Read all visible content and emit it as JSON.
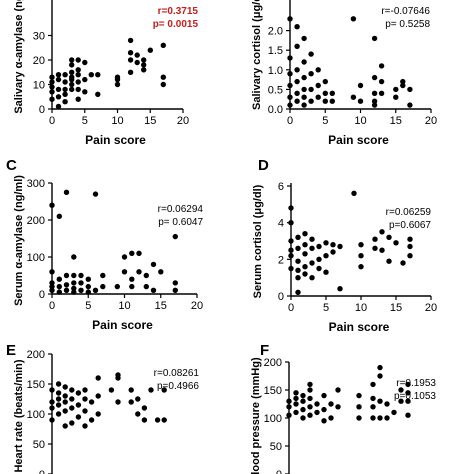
{
  "chart_data": [
    {
      "id": "A",
      "panel_label": "",
      "type": "scatter",
      "xlabel": "Pain score",
      "ylabel": "Salivary α-amylase (ng/",
      "xlim": [
        0,
        20
      ],
      "ylim": [
        0,
        40
      ],
      "xticks": [
        "0",
        "5",
        "10",
        "15",
        "20"
      ],
      "yticks": [
        "0",
        "10",
        "20",
        "30"
      ],
      "r": "r=0.3715",
      "p": "p= 0.0015",
      "significant": true,
      "points": [
        [
          0,
          4
        ],
        [
          0,
          7
        ],
        [
          0,
          9
        ],
        [
          0,
          11
        ],
        [
          0,
          13
        ],
        [
          1,
          1
        ],
        [
          1,
          5
        ],
        [
          1,
          8
        ],
        [
          1,
          12
        ],
        [
          1,
          14
        ],
        [
          2,
          3
        ],
        [
          2,
          6
        ],
        [
          2,
          8
        ],
        [
          2,
          11
        ],
        [
          2,
          14
        ],
        [
          3,
          8
        ],
        [
          3,
          10
        ],
        [
          3,
          12
        ],
        [
          3,
          13
        ],
        [
          3,
          15
        ],
        [
          3,
          18
        ],
        [
          3,
          20
        ],
        [
          4,
          4
        ],
        [
          4,
          8
        ],
        [
          4,
          11
        ],
        [
          4,
          14
        ],
        [
          4,
          16
        ],
        [
          4,
          20
        ],
        [
          5,
          7
        ],
        [
          5,
          12
        ],
        [
          5,
          19
        ],
        [
          6,
          14
        ],
        [
          7,
          6
        ],
        [
          7,
          14
        ],
        [
          10,
          10
        ],
        [
          10,
          12
        ],
        [
          10,
          13
        ],
        [
          12,
          15
        ],
        [
          12,
          20
        ],
        [
          12,
          23
        ],
        [
          12,
          28
        ],
        [
          13,
          19
        ],
        [
          13,
          22
        ],
        [
          14,
          16
        ],
        [
          14,
          18
        ],
        [
          14,
          20
        ],
        [
          15,
          24
        ],
        [
          17,
          10
        ],
        [
          17,
          13
        ],
        [
          17,
          26
        ]
      ]
    },
    {
      "id": "B",
      "panel_label": "",
      "type": "scatter",
      "xlabel": "Pain score",
      "ylabel": "Salivary cortisol (μg/d",
      "xlim": [
        0,
        20
      ],
      "ylim": [
        0,
        2.5
      ],
      "xticks": [
        "0",
        "5",
        "10",
        "15",
        "20"
      ],
      "yticks": [
        "0.0",
        "0.5",
        "1.0",
        "1.5",
        "2.0"
      ],
      "r": "r=-0.07646",
      "p": "p= 0.5258",
      "significant": false,
      "points": [
        [
          0,
          0.1
        ],
        [
          0,
          0.3
        ],
        [
          0,
          0.6
        ],
        [
          0,
          0.9
        ],
        [
          0,
          1.3
        ],
        [
          0,
          2.3
        ],
        [
          1,
          0.2
        ],
        [
          1,
          0.4
        ],
        [
          1,
          0.7
        ],
        [
          1,
          1.0
        ],
        [
          1,
          1.6
        ],
        [
          1,
          2.1
        ],
        [
          2,
          0.1
        ],
        [
          2,
          0.3
        ],
        [
          2,
          0.5
        ],
        [
          2,
          0.8
        ],
        [
          2,
          1.2
        ],
        [
          2,
          1.8
        ],
        [
          3,
          0.2
        ],
        [
          3,
          0.5
        ],
        [
          3,
          0.9
        ],
        [
          3,
          1.4
        ],
        [
          4,
          0.3
        ],
        [
          4,
          0.6
        ],
        [
          4,
          1.0
        ],
        [
          5,
          0.2
        ],
        [
          5,
          0.4
        ],
        [
          5,
          0.7
        ],
        [
          6,
          0.2
        ],
        [
          6,
          0.4
        ],
        [
          9,
          0.3
        ],
        [
          9,
          2.3
        ],
        [
          10,
          0.2
        ],
        [
          10,
          0.6
        ],
        [
          12,
          0.1
        ],
        [
          12,
          0.2
        ],
        [
          12,
          0.4
        ],
        [
          12,
          0.8
        ],
        [
          12,
          1.8
        ],
        [
          13,
          0.4
        ],
        [
          13,
          0.7
        ],
        [
          13,
          1.1
        ],
        [
          15,
          0.3
        ],
        [
          15,
          0.5
        ],
        [
          16,
          0.6
        ],
        [
          16,
          0.7
        ],
        [
          17,
          0.1
        ],
        [
          17,
          0.5
        ]
      ]
    },
    {
      "id": "C",
      "panel_label": "C",
      "type": "scatter",
      "xlabel": "Pain score",
      "ylabel": "Serum α-amylase (ng/ml)",
      "xlim": [
        0,
        20
      ],
      "ylim": [
        0,
        300
      ],
      "xticks": [
        "0",
        "5",
        "10",
        "15",
        "20"
      ],
      "yticks": [
        "0",
        "100",
        "200",
        "300"
      ],
      "r": "r=0.06294",
      "p": "p= 0.6047",
      "significant": false,
      "points": [
        [
          0,
          10
        ],
        [
          0,
          20
        ],
        [
          0,
          30
        ],
        [
          0,
          60
        ],
        [
          0,
          240
        ],
        [
          1,
          5
        ],
        [
          1,
          20
        ],
        [
          1,
          40
        ],
        [
          1,
          210
        ],
        [
          2,
          10
        ],
        [
          2,
          25
        ],
        [
          2,
          50
        ],
        [
          2,
          275
        ],
        [
          3,
          5
        ],
        [
          3,
          15
        ],
        [
          3,
          30
        ],
        [
          3,
          50
        ],
        [
          3,
          100
        ],
        [
          4,
          10
        ],
        [
          4,
          30
        ],
        [
          4,
          50
        ],
        [
          5,
          5
        ],
        [
          5,
          20
        ],
        [
          5,
          40
        ],
        [
          6,
          10
        ],
        [
          6,
          270
        ],
        [
          7,
          20
        ],
        [
          7,
          50
        ],
        [
          9,
          20
        ],
        [
          10,
          60
        ],
        [
          10,
          100
        ],
        [
          11,
          20
        ],
        [
          11,
          40
        ],
        [
          11,
          110
        ],
        [
          12,
          110
        ],
        [
          12,
          60
        ],
        [
          13,
          20
        ],
        [
          13,
          50
        ],
        [
          14,
          10
        ],
        [
          14,
          80
        ],
        [
          15,
          60
        ],
        [
          17,
          10
        ],
        [
          17,
          30
        ],
        [
          17,
          155
        ]
      ]
    },
    {
      "id": "D",
      "panel_label": "D",
      "type": "scatter",
      "xlabel": "Pain score",
      "ylabel": "Serum cortisol (μg/dl)",
      "xlim": [
        0,
        20
      ],
      "ylim": [
        0,
        6
      ],
      "xticks": [
        "0",
        "5",
        "10",
        "15",
        "20"
      ],
      "yticks": [
        "0",
        "2",
        "4",
        "6"
      ],
      "r": "r=0.06259",
      "p": "p=0.6067",
      "significant": false,
      "points": [
        [
          0,
          1.5
        ],
        [
          0,
          2.2
        ],
        [
          0,
          2.5
        ],
        [
          0,
          3.0
        ],
        [
          0,
          4.0
        ],
        [
          0,
          4.8
        ],
        [
          1,
          0.2
        ],
        [
          1,
          1.0
        ],
        [
          1,
          1.4
        ],
        [
          1,
          1.9
        ],
        [
          1,
          2.6
        ],
        [
          1,
          3.2
        ],
        [
          2,
          1.2
        ],
        [
          2,
          1.6
        ],
        [
          2,
          2.3
        ],
        [
          2,
          2.8
        ],
        [
          2,
          3.4
        ],
        [
          3,
          1.0
        ],
        [
          3,
          1.8
        ],
        [
          3,
          2.6
        ],
        [
          3,
          3.1
        ],
        [
          4,
          1.5
        ],
        [
          4,
          2.0
        ],
        [
          4,
          2.7
        ],
        [
          5,
          1.3
        ],
        [
          5,
          2.2
        ],
        [
          5,
          2.9
        ],
        [
          6,
          2.4
        ],
        [
          6,
          2.8
        ],
        [
          7,
          0.4
        ],
        [
          7,
          2.7
        ],
        [
          9,
          5.6
        ],
        [
          10,
          1.6
        ],
        [
          10,
          2.2
        ],
        [
          10,
          2.8
        ],
        [
          12,
          2.6
        ],
        [
          12,
          3.1
        ],
        [
          13,
          2.5
        ],
        [
          13,
          3.5
        ],
        [
          14,
          1.9
        ],
        [
          14,
          3.2
        ],
        [
          15,
          2.9
        ],
        [
          16,
          1.8
        ],
        [
          17,
          2.2
        ],
        [
          17,
          2.7
        ],
        [
          17,
          3.1
        ]
      ]
    },
    {
      "id": "E",
      "panel_label": "E",
      "type": "scatter",
      "xlabel": "",
      "ylabel": "Heart rate (beats/min)",
      "xlim": [
        0,
        20
      ],
      "ylim": [
        0,
        200
      ],
      "xticks": [],
      "yticks": [
        "0",
        "50",
        "100",
        "150",
        "200"
      ],
      "r": "r=0.08261",
      "p": "p=0.4966",
      "significant": false,
      "points": [
        [
          0,
          90
        ],
        [
          0,
          110
        ],
        [
          0,
          120
        ],
        [
          0,
          140
        ],
        [
          1,
          100
        ],
        [
          1,
          115
        ],
        [
          1,
          125
        ],
        [
          1,
          135
        ],
        [
          1,
          150
        ],
        [
          2,
          80
        ],
        [
          2,
          105
        ],
        [
          2,
          120
        ],
        [
          2,
          130
        ],
        [
          2,
          145
        ],
        [
          3,
          85
        ],
        [
          3,
          110
        ],
        [
          3,
          125
        ],
        [
          3,
          140
        ],
        [
          4,
          95
        ],
        [
          4,
          115
        ],
        [
          4,
          135
        ],
        [
          5,
          80
        ],
        [
          5,
          105
        ],
        [
          5,
          125
        ],
        [
          5,
          140
        ],
        [
          6,
          90
        ],
        [
          6,
          120
        ],
        [
          7,
          100
        ],
        [
          7,
          130
        ],
        [
          7,
          160
        ],
        [
          9,
          140
        ],
        [
          10,
          120
        ],
        [
          10,
          160
        ],
        [
          10,
          165
        ],
        [
          12,
          120
        ],
        [
          12,
          140
        ],
        [
          13,
          100
        ],
        [
          13,
          125
        ],
        [
          14,
          90
        ],
        [
          14,
          110
        ],
        [
          15,
          140
        ],
        [
          16,
          90
        ],
        [
          17,
          90
        ],
        [
          17,
          140
        ]
      ]
    },
    {
      "id": "F",
      "panel_label": "F",
      "type": "scatter",
      "xlabel": "",
      "ylabel": "Blood pressure (mmHg)",
      "xlim": [
        0,
        20
      ],
      "ylim": [
        0,
        200
      ],
      "xticks": [],
      "yticks": [
        "0",
        "50",
        "100",
        "150",
        "200"
      ],
      "r": "r=0.1953",
      "p": "p=0.1053",
      "significant": false,
      "points": [
        [
          0,
          105
        ],
        [
          0,
          120
        ],
        [
          0,
          130
        ],
        [
          1,
          110
        ],
        [
          1,
          125
        ],
        [
          1,
          135
        ],
        [
          1,
          145
        ],
        [
          2,
          100
        ],
        [
          2,
          115
        ],
        [
          2,
          130
        ],
        [
          2,
          140
        ],
        [
          3,
          105
        ],
        [
          3,
          120
        ],
        [
          3,
          135
        ],
        [
          3,
          150
        ],
        [
          3,
          160
        ],
        [
          4,
          110
        ],
        [
          4,
          125
        ],
        [
          5,
          95
        ],
        [
          5,
          115
        ],
        [
          5,
          140
        ],
        [
          6,
          100
        ],
        [
          6,
          125
        ],
        [
          7,
          120
        ],
        [
          7,
          150
        ],
        [
          10,
          100
        ],
        [
          10,
          120
        ],
        [
          10,
          140
        ],
        [
          12,
          100
        ],
        [
          12,
          120
        ],
        [
          12,
          135
        ],
        [
          12,
          160
        ],
        [
          13,
          100
        ],
        [
          13,
          130
        ],
        [
          13,
          175
        ],
        [
          13,
          190
        ],
        [
          14,
          100
        ],
        [
          14,
          125
        ],
        [
          15,
          110
        ],
        [
          16,
          130
        ],
        [
          16,
          150
        ],
        [
          17,
          105
        ],
        [
          17,
          130
        ],
        [
          17,
          145
        ],
        [
          17,
          160
        ]
      ]
    }
  ]
}
